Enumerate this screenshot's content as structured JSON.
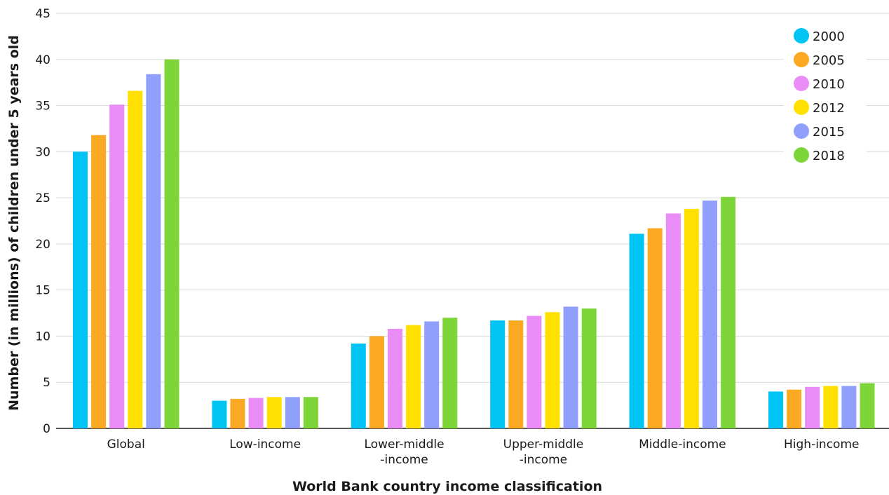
{
  "chart_data": {
    "type": "bar",
    "xlabel": "World Bank country income classification",
    "ylabel": "Number (in millions) of children under 5 years old",
    "ylim": [
      0,
      45
    ],
    "yticks": [
      0,
      5,
      10,
      15,
      20,
      25,
      30,
      35,
      40,
      45
    ],
    "grid": true,
    "legend_position": "top-right",
    "categories": [
      [
        "Global"
      ],
      [
        "Low-income"
      ],
      [
        "Lower-middle",
        "-income"
      ],
      [
        "Upper-middle",
        "-income"
      ],
      [
        "Middle-income"
      ],
      [
        "High-income"
      ]
    ],
    "series": [
      {
        "name": "2000",
        "color": "#00c5f4",
        "values": [
          30.0,
          3.0,
          9.2,
          11.7,
          21.1,
          4.0
        ]
      },
      {
        "name": "2005",
        "color": "#fba823",
        "values": [
          31.8,
          3.2,
          10.0,
          11.7,
          21.7,
          4.2
        ]
      },
      {
        "name": "2010",
        "color": "#e98cf5",
        "values": [
          35.1,
          3.3,
          10.8,
          12.2,
          23.3,
          4.5
        ]
      },
      {
        "name": "2012",
        "color": "#ffe000",
        "values": [
          36.6,
          3.4,
          11.2,
          12.6,
          23.8,
          4.6
        ]
      },
      {
        "name": "2015",
        "color": "#919ffc",
        "values": [
          38.4,
          3.4,
          11.6,
          13.2,
          24.7,
          4.6
        ]
      },
      {
        "name": "2018",
        "color": "#7ed53a",
        "values": [
          40.0,
          3.4,
          12.0,
          13.0,
          25.1,
          4.9
        ]
      }
    ]
  }
}
